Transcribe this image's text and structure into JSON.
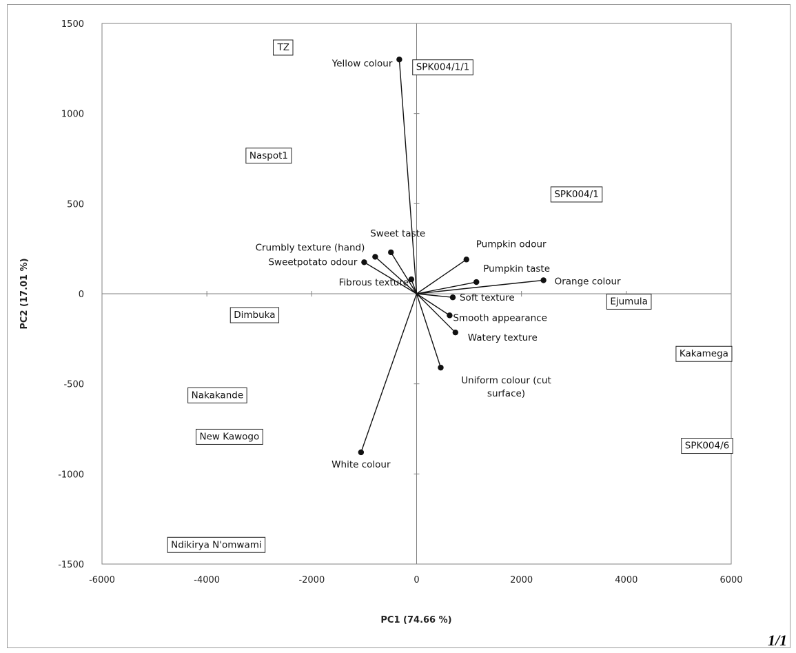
{
  "corner_text": "1/1",
  "chart_data": {
    "type": "scatter",
    "title": "",
    "xlabel": "PC1 (74.66 %)",
    "ylabel": "PC2 (17.01 %)",
    "xlim": [
      -6000,
      6000
    ],
    "ylim": [
      -1500,
      1500
    ],
    "x_ticks": [
      -6000,
      -4000,
      -2000,
      0,
      2000,
      4000,
      6000
    ],
    "y_ticks": [
      -1500,
      -1000,
      -500,
      0,
      500,
      1000,
      1500
    ],
    "grid": false,
    "colors": {
      "axis": "#808080",
      "vector": "#111111",
      "box": "#222222"
    },
    "variables": [
      {
        "name": "Yellow colour",
        "x": -330,
        "y": 1300
      },
      {
        "name": "Sweet taste",
        "x": -490,
        "y": 230
      },
      {
        "name": "Crumbly texture (hand)",
        "x": -790,
        "y": 205
      },
      {
        "name": "Sweetpotato odour",
        "x": -1000,
        "y": 175
      },
      {
        "name": "Fibrous texture",
        "x": -100,
        "y": 80
      },
      {
        "name": "Pumpkin odour",
        "x": 950,
        "y": 190
      },
      {
        "name": "Pumpkin taste",
        "x": 1140,
        "y": 65
      },
      {
        "name": "Orange colour",
        "x": 2420,
        "y": 75
      },
      {
        "name": "Soft texture",
        "x": 690,
        "y": -20
      },
      {
        "name": "Smooth appearance",
        "x": 630,
        "y": -120
      },
      {
        "name": "Watery texture",
        "x": 740,
        "y": -215
      },
      {
        "name": "Uniform colour (cut surface)",
        "x": 460,
        "y": -410
      },
      {
        "name": "White colour",
        "x": -1060,
        "y": -880
      }
    ],
    "observations": [
      {
        "name": "TZ",
        "x": -2540,
        "y": 1370
      },
      {
        "name": "SPK004/1/1",
        "x": 500,
        "y": 1260
      },
      {
        "name": "Naspot1",
        "x": -2820,
        "y": 770
      },
      {
        "name": "SPK004/1",
        "x": 3050,
        "y": 555
      },
      {
        "name": "Dimbuka",
        "x": -3090,
        "y": -115
      },
      {
        "name": "Ejumula",
        "x": 4050,
        "y": -40
      },
      {
        "name": "Kakamega",
        "x": 5480,
        "y": -330
      },
      {
        "name": "Nakakande",
        "x": -3800,
        "y": -560
      },
      {
        "name": "New Kawogo",
        "x": -3570,
        "y": -790
      },
      {
        "name": "SPK004/6",
        "x": 5540,
        "y": -840
      },
      {
        "name": "Ndikirya N'omwami",
        "x": -3820,
        "y": -1390
      }
    ]
  }
}
